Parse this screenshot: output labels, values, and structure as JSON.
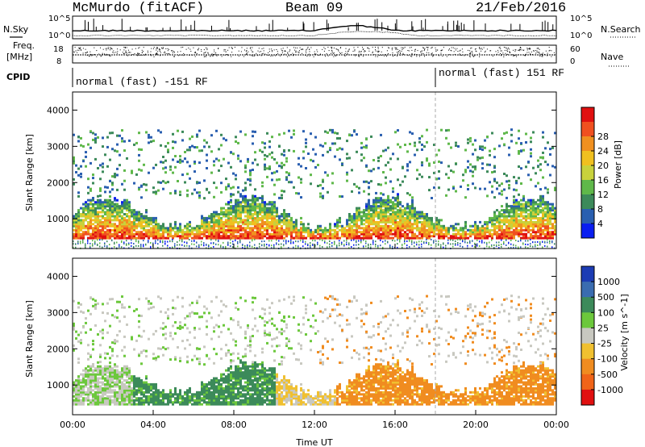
{
  "header": {
    "station": "McMurdo (fitACF)",
    "beam": "Beam 09",
    "date": "21/Feb/2016"
  },
  "aux_panels": {
    "left_labels": {
      "nsky": "N.Sky",
      "freq_line1": "Freq.",
      "freq_line2": "[MHz]",
      "cpid": "CPID"
    },
    "right_labels": {
      "nsearch": "N.Search",
      "nave": "Nave"
    },
    "noise_ticks": {
      "left_top": "10^5",
      "left_bottom": "10^0",
      "right_top": "10^5",
      "right_bottom": "10^0"
    },
    "freq_ticks": {
      "top": "18",
      "bottom": "8"
    },
    "nave_ticks": {
      "top": "60",
      "bottom": "0"
    },
    "cpid_segments": [
      {
        "label": "normal (fast) -151 RF"
      },
      {
        "label": "normal (fast) 151 RF"
      }
    ],
    "cpid_change_hour": 18
  },
  "chart_data": [
    {
      "type": "heatmap",
      "panel": "power",
      "ylabel": "Slant Range [km]",
      "xlabel": "",
      "x_range_hours": [
        0,
        24
      ],
      "ylim": [
        180,
        4500
      ],
      "y_ticks": [
        "1000",
        "2000",
        "3000",
        "4000"
      ],
      "colorbar": {
        "label": "Power [dB]",
        "ticks": [
          "4",
          "8",
          "12",
          "16",
          "20",
          "24",
          "28"
        ],
        "range": [
          0,
          30
        ],
        "colors": [
          "#0a1ef0",
          "#2a5fb0",
          "#3c8a5a",
          "#5fb84a",
          "#c8d23c",
          "#f0c020",
          "#f09020",
          "#f05020",
          "#e01010"
        ]
      }
    },
    {
      "type": "heatmap",
      "panel": "velocity",
      "ylabel": "Slant Range [km]",
      "xlabel": "Time UT",
      "x_ticks": [
        "00:00",
        "04:00",
        "08:00",
        "12:00",
        "16:00",
        "20:00",
        "00:00"
      ],
      "x_range_hours": [
        0,
        24
      ],
      "ylim": [
        180,
        4500
      ],
      "y_ticks": [
        "1000",
        "2000",
        "3000",
        "4000"
      ],
      "colorbar": {
        "label": "Velocity [m s^-1]",
        "ticks": [
          "1000",
          "500",
          "100",
          "25",
          "-25",
          "-100",
          "-500",
          "-1000"
        ],
        "colors": [
          "#1c3cb4",
          "#3a6cb0",
          "#3c8a5a",
          "#6cc83c",
          "#c8c8c0",
          "#f0c030",
          "#f08c20",
          "#f06418",
          "#e01010"
        ]
      }
    }
  ]
}
